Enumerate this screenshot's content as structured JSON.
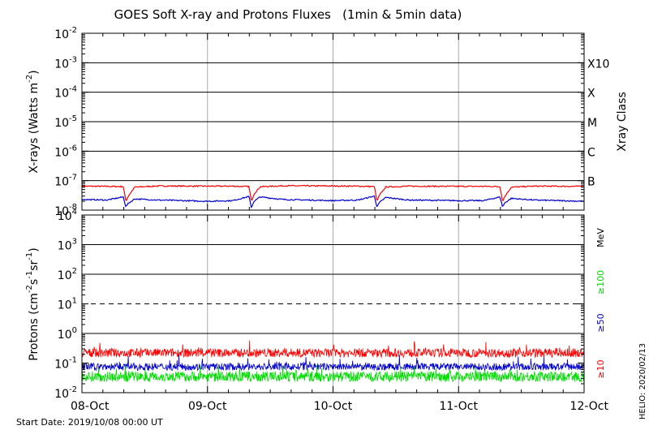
{
  "title": "GOES Soft X-ray and Protons Fluxes   (1min & 5min data)",
  "start_date": "Start Date: 2019/10/08 00:00 UT",
  "helio_stamp": "HELIO: 2020/02/13",
  "xray_class_label": "Xray Class",
  "mev_label": "MeV",
  "colors": {
    "xray_long": "#ff0000",
    "xray_short": "#0000cc",
    "p10": "#ff0000",
    "p50": "#0000cc",
    "p100": "#00dd00",
    "grid_v": "#aaaaaa"
  },
  "chart_data": [
    {
      "type": "line",
      "panel": "xrays",
      "ylabel_prefix": "X-rays (Watts m",
      "ylabel_exp": "-2",
      "ylabel_suffix": ")",
      "y_scale": "log",
      "ylim": [
        1e-08,
        0.01
      ],
      "y_ticks": [
        {
          "base": "10",
          "exp": "-2"
        },
        {
          "base": "10",
          "exp": "-3"
        },
        {
          "base": "10",
          "exp": "-4"
        },
        {
          "base": "10",
          "exp": "-5"
        },
        {
          "base": "10",
          "exp": "-6"
        },
        {
          "base": "10",
          "exp": "-7"
        },
        {
          "base": "10",
          "exp": "-8"
        }
      ],
      "xray_classes": [
        "X10",
        "X",
        "M",
        "C",
        "B"
      ],
      "horizontal_lines": [
        0.001,
        0.0001,
        1e-05,
        1e-06,
        1e-07
      ],
      "xlim_days": [
        0,
        4
      ],
      "series": [
        {
          "color": "#ff0000",
          "x": [
            0.0,
            0.2,
            0.33,
            0.35,
            0.37,
            0.42,
            0.6,
            1.0,
            1.2,
            1.33,
            1.35,
            1.37,
            1.42,
            1.6,
            2.0,
            2.2,
            2.33,
            2.35,
            2.37,
            2.42,
            2.6,
            3.0,
            3.2,
            3.33,
            3.35,
            3.37,
            3.42,
            3.6,
            4.0
          ],
          "values": [
            6.5e-08,
            6.4e-08,
            6.3e-08,
            2e-08,
            3e-08,
            6e-08,
            6.6e-08,
            6.5e-08,
            6.5e-08,
            6.3e-08,
            2e-08,
            3.5e-08,
            6.2e-08,
            6.7e-08,
            6.6e-08,
            6.5e-08,
            6.3e-08,
            2e-08,
            3.2e-08,
            6.1e-08,
            6.5e-08,
            6.4e-08,
            6.4e-08,
            6.3e-08,
            2e-08,
            3e-08,
            6e-08,
            6.5e-08,
            6.4e-08
          ]
        },
        {
          "color": "#0000cc",
          "x": [
            0.0,
            0.2,
            0.33,
            0.35,
            0.37,
            0.42,
            0.6,
            1.0,
            1.2,
            1.33,
            1.35,
            1.37,
            1.42,
            1.6,
            2.0,
            2.2,
            2.33,
            2.35,
            2.37,
            2.42,
            2.6,
            3.0,
            3.2,
            3.33,
            3.35,
            3.37,
            3.42,
            3.6,
            4.0
          ],
          "values": [
            2.3e-08,
            2.2e-08,
            2.8e-08,
            1.3e-08,
            1.7e-08,
            2.4e-08,
            2.2e-08,
            2e-08,
            2.1e-08,
            2.9e-08,
            1.2e-08,
            2e-08,
            2.8e-08,
            2.3e-08,
            2.1e-08,
            2.2e-08,
            3e-08,
            1.3e-08,
            1.8e-08,
            2.7e-08,
            2.2e-08,
            2.1e-08,
            2.1e-08,
            2.8e-08,
            1.3e-08,
            1.8e-08,
            2.5e-08,
            2.2e-08,
            2e-08
          ]
        }
      ]
    },
    {
      "type": "line",
      "panel": "protons",
      "ylabel_prefix": "Protons (cm",
      "ylabel_parts": [
        {
          "t": "-2",
          "sup": true
        },
        {
          "t": "s",
          "sup": false
        },
        {
          "t": "-1",
          "sup": true
        },
        {
          "t": "sr",
          "sup": false
        },
        {
          "t": "-1",
          "sup": true
        },
        {
          "t": ")",
          "sup": false
        }
      ],
      "y_scale": "log",
      "ylim": [
        0.01,
        10000
      ],
      "y_ticks": [
        {
          "base": "10",
          "exp": "4"
        },
        {
          "base": "10",
          "exp": "3"
        },
        {
          "base": "10",
          "exp": "2"
        },
        {
          "base": "10",
          "exp": "1"
        },
        {
          "base": "10",
          "exp": "0"
        },
        {
          "base": "10",
          "exp": "-1"
        },
        {
          "base": "10",
          "exp": "-2"
        }
      ],
      "horizontal_lines": [
        1000,
        100,
        1
      ],
      "dashed_lines": [
        10
      ],
      "xlim_days": [
        0,
        4
      ],
      "x_ticks": [
        "08-Oct",
        "09-Oct",
        "10-Oct",
        "11-Oct",
        "12-Oct"
      ],
      "series": [
        {
          "name": "≥100",
          "color": "#00dd00",
          "mean": 0.035,
          "spread": 0.35
        },
        {
          "name": "≥50",
          "color": "#0000cc",
          "mean": 0.075,
          "spread": 0.25
        },
        {
          "name": "≥10",
          "color": "#ff0000",
          "mean": 0.22,
          "spread": 0.3
        }
      ]
    }
  ]
}
